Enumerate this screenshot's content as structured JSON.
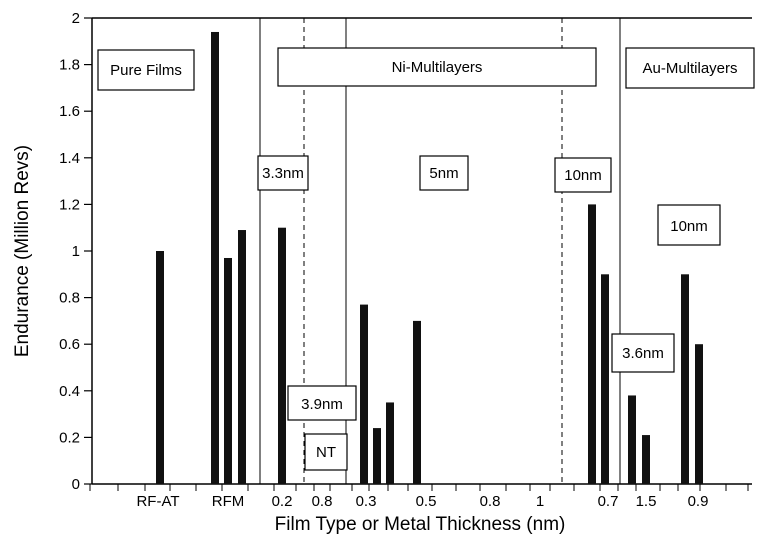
{
  "chart_data": {
    "type": "bar",
    "title": "",
    "xlabel": "Film Type or Metal Thickness (nm)",
    "ylabel": "Endurance (Million Revs)",
    "ylim": [
      0,
      2
    ],
    "yticks": [
      "0",
      "0.2",
      "0.4",
      "0.6",
      "0.8",
      "1",
      "1.2",
      "1.4",
      "1.6",
      "1.8",
      "2"
    ],
    "grid": false,
    "xtick_labels": [
      "RF-AT",
      "RFM",
      "0.2",
      "0.8",
      "0.3",
      "0.5",
      "0.8",
      "1",
      "0.7",
      "1.5",
      "0.9"
    ],
    "regions": [
      "Pure Films",
      "Ni-Multilayers",
      "Au-Multilayers"
    ],
    "annotations": [
      "3.3nm",
      "3.9nm",
      "NT",
      "5nm",
      "10nm",
      "10nm",
      "3.6nm"
    ],
    "values": [
      1.0,
      1.94,
      0.97,
      1.09,
      1.1,
      0.77,
      0.24,
      0.35,
      0.7,
      1.2,
      0.9,
      0.38,
      0.21,
      0.9,
      0.6
    ]
  }
}
